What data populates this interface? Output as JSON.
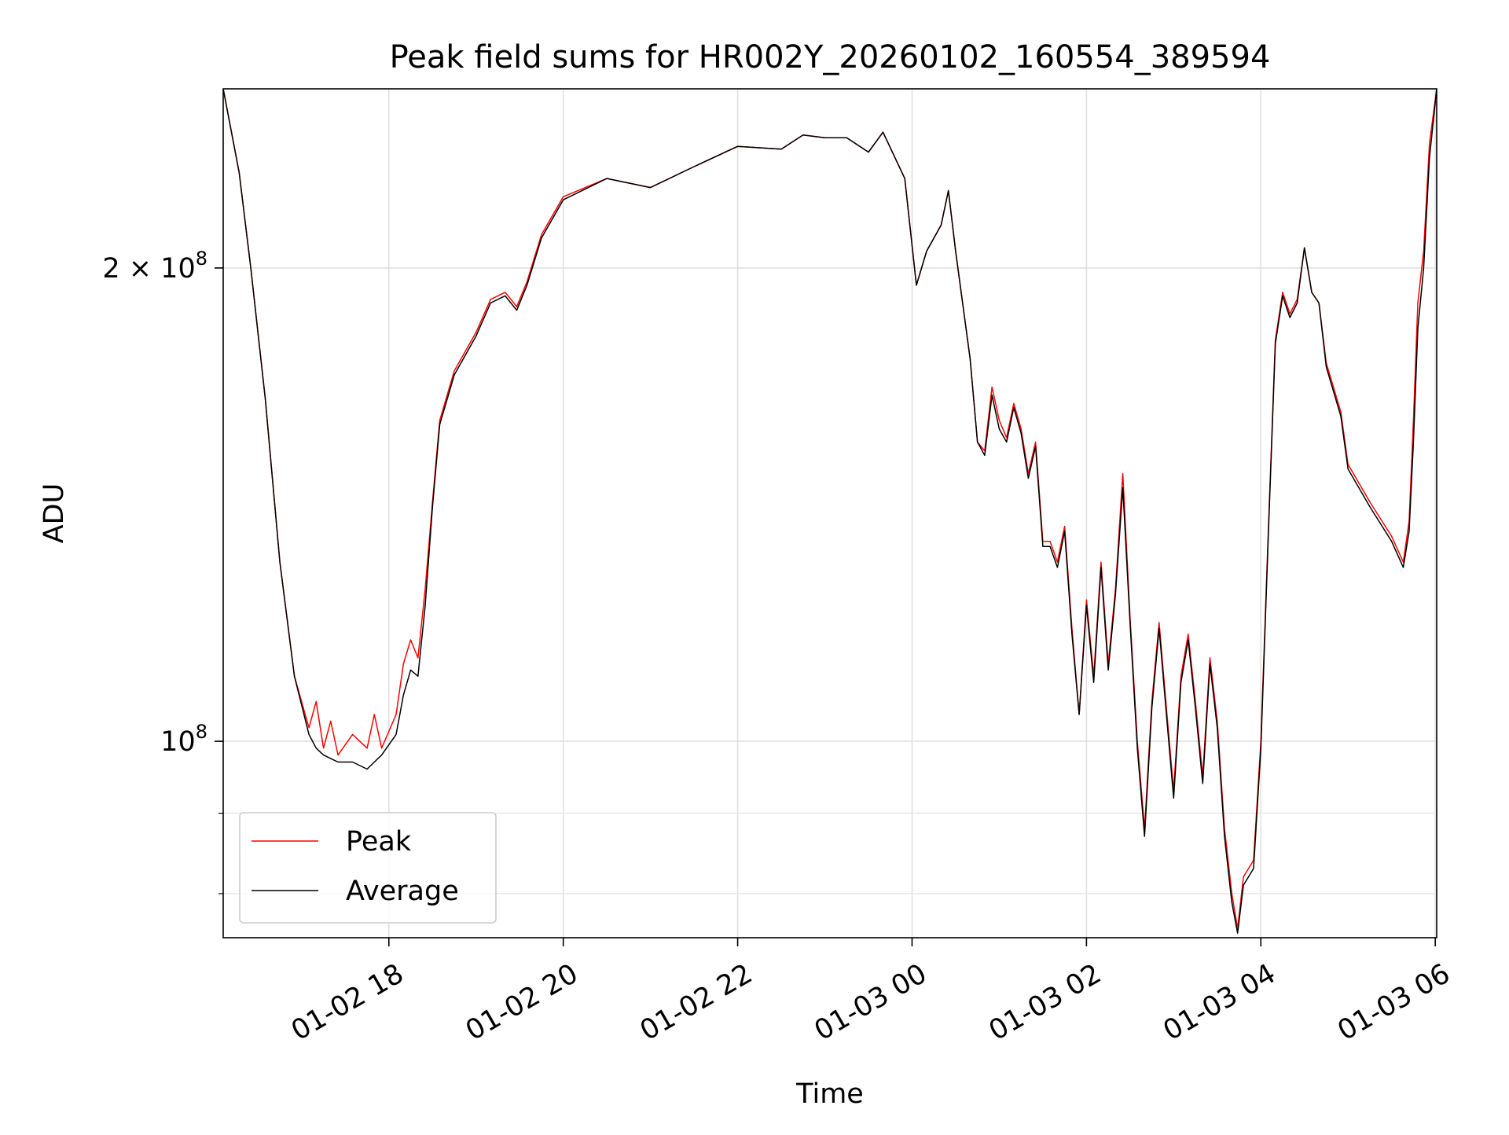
{
  "chart_data": {
    "type": "line",
    "title": "Peak field sums for HR002Y_20260102_160554_389594",
    "xlabel": "Time",
    "ylabel": "ADU",
    "xaxis": {
      "start": "2026-01-02 16:06",
      "end": "2026-01-03 06:01",
      "ticks": [
        "01-02 18",
        "01-02 20",
        "01-02 22",
        "01-03 00",
        "01-03 02",
        "01-03 04",
        "01-03 06"
      ],
      "tick_times": [
        "2026-01-02 18:00",
        "2026-01-02 20:00",
        "2026-01-02 22:00",
        "2026-01-03 00:00",
        "2026-01-03 02:00",
        "2026-01-03 04:00",
        "2026-01-03 06:00"
      ],
      "tick_rotation_deg": 30
    },
    "yaxis": {
      "scale": "log",
      "ylim": [
        75000000,
        260000000
      ],
      "major_ticks": [
        100000000,
        200000000
      ],
      "major_labels": [
        "10^8",
        "2 × 10^8"
      ]
    },
    "grid": true,
    "legend": {
      "position": "lower-left"
    },
    "series": [
      {
        "name": "Peak",
        "color": "#ff0000",
        "points": [
          [
            "2026-01-02 16:06",
            260000000
          ],
          [
            "2026-01-02 16:17",
            230000000
          ],
          [
            "2026-01-02 16:25",
            200000000
          ],
          [
            "2026-01-02 16:35",
            165000000
          ],
          [
            "2026-01-02 16:45",
            130000000
          ],
          [
            "2026-01-02 16:55",
            110000000
          ],
          [
            "2026-01-02 17:05",
            102000000
          ],
          [
            "2026-01-02 17:10",
            106000000
          ],
          [
            "2026-01-02 17:15",
            99000000
          ],
          [
            "2026-01-02 17:20",
            103000000
          ],
          [
            "2026-01-02 17:25",
            98000000
          ],
          [
            "2026-01-02 17:35",
            101000000
          ],
          [
            "2026-01-02 17:45",
            99000000
          ],
          [
            "2026-01-02 17:50",
            104000000
          ],
          [
            "2026-01-02 17:55",
            99000000
          ],
          [
            "2026-01-02 18:05",
            104000000
          ],
          [
            "2026-01-02 18:10",
            112000000
          ],
          [
            "2026-01-02 18:15",
            116000000
          ],
          [
            "2026-01-02 18:20",
            113000000
          ],
          [
            "2026-01-02 18:25",
            125000000
          ],
          [
            "2026-01-02 18:30",
            142000000
          ],
          [
            "2026-01-02 18:35",
            160000000
          ],
          [
            "2026-01-02 18:45",
            172000000
          ],
          [
            "2026-01-02 19:00",
            182000000
          ],
          [
            "2026-01-02 19:10",
            191000000
          ],
          [
            "2026-01-02 19:20",
            193000000
          ],
          [
            "2026-01-02 19:28",
            189000000
          ],
          [
            "2026-01-02 19:35",
            196000000
          ],
          [
            "2026-01-02 19:45",
            210000000
          ],
          [
            "2026-01-02 20:00",
            222000000
          ],
          [
            "2026-01-02 20:30",
            228000000
          ],
          [
            "2026-01-02 21:00",
            225000000
          ],
          [
            "2026-01-02 21:30",
            232000000
          ],
          [
            "2026-01-02 22:00",
            239000000
          ],
          [
            "2026-01-02 22:30",
            238000000
          ],
          [
            "2026-01-02 22:45",
            243000000
          ],
          [
            "2026-01-02 23:00",
            242000000
          ],
          [
            "2026-01-02 23:15",
            242000000
          ],
          [
            "2026-01-02 23:30",
            237000000
          ],
          [
            "2026-01-02 23:40",
            244000000
          ],
          [
            "2026-01-02 23:55",
            228000000
          ],
          [
            "2026-01-03 00:03",
            195000000
          ],
          [
            "2026-01-03 00:10",
            205000000
          ],
          [
            "2026-01-03 00:20",
            213000000
          ],
          [
            "2026-01-03 00:25",
            224000000
          ],
          [
            "2026-01-03 00:30",
            205000000
          ],
          [
            "2026-01-03 00:40",
            175000000
          ],
          [
            "2026-01-03 00:45",
            155000000
          ],
          [
            "2026-01-03 00:50",
            153000000
          ],
          [
            "2026-01-03 00:55",
            168000000
          ],
          [
            "2026-01-03 01:00",
            160000000
          ],
          [
            "2026-01-03 01:05",
            156000000
          ],
          [
            "2026-01-03 01:10",
            164000000
          ],
          [
            "2026-01-03 01:15",
            158000000
          ],
          [
            "2026-01-03 01:20",
            148000000
          ],
          [
            "2026-01-03 01:25",
            155000000
          ],
          [
            "2026-01-03 01:30",
            134000000
          ],
          [
            "2026-01-03 01:35",
            134000000
          ],
          [
            "2026-01-03 01:40",
            130000000
          ],
          [
            "2026-01-03 01:45",
            137000000
          ],
          [
            "2026-01-03 01:50",
            118000000
          ],
          [
            "2026-01-03 01:55",
            104000000
          ],
          [
            "2026-01-03 02:00",
            123000000
          ],
          [
            "2026-01-03 02:05",
            110000000
          ],
          [
            "2026-01-03 02:10",
            130000000
          ],
          [
            "2026-01-03 02:15",
            112000000
          ],
          [
            "2026-01-03 02:20",
            125000000
          ],
          [
            "2026-01-03 02:25",
            148000000
          ],
          [
            "2026-01-03 02:30",
            120000000
          ],
          [
            "2026-01-03 02:35",
            100000000
          ],
          [
            "2026-01-03 02:40",
            88000000
          ],
          [
            "2026-01-03 02:45",
            106000000
          ],
          [
            "2026-01-03 02:50",
            119000000
          ],
          [
            "2026-01-03 02:55",
            105000000
          ],
          [
            "2026-01-03 03:00",
            93000000
          ],
          [
            "2026-01-03 03:05",
            110000000
          ],
          [
            "2026-01-03 03:10",
            117000000
          ],
          [
            "2026-01-03 03:15",
            106000000
          ],
          [
            "2026-01-03 03:20",
            95000000
          ],
          [
            "2026-01-03 03:25",
            113000000
          ],
          [
            "2026-01-03 03:30",
            103000000
          ],
          [
            "2026-01-03 03:35",
            88000000
          ],
          [
            "2026-01-03 03:40",
            80000000
          ],
          [
            "2026-01-03 03:44",
            76000000
          ],
          [
            "2026-01-03 03:48",
            82000000
          ],
          [
            "2026-01-03 03:55",
            84000000
          ],
          [
            "2026-01-03 04:00",
            100000000
          ],
          [
            "2026-01-03 04:05",
            135000000
          ],
          [
            "2026-01-03 04:10",
            180000000
          ],
          [
            "2026-01-03 04:15",
            193000000
          ],
          [
            "2026-01-03 04:20",
            187000000
          ],
          [
            "2026-01-03 04:25",
            191000000
          ],
          [
            "2026-01-03 04:30",
            206000000
          ],
          [
            "2026-01-03 04:35",
            193000000
          ],
          [
            "2026-01-03 04:40",
            190000000
          ],
          [
            "2026-01-03 04:45",
            174000000
          ],
          [
            "2026-01-03 04:55",
            162000000
          ],
          [
            "2026-01-03 05:00",
            150000000
          ],
          [
            "2026-01-03 05:15",
            142000000
          ],
          [
            "2026-01-03 05:30",
            135000000
          ],
          [
            "2026-01-03 05:38",
            130000000
          ],
          [
            "2026-01-03 05:42",
            138000000
          ],
          [
            "2026-01-03 05:45",
            160000000
          ],
          [
            "2026-01-03 05:48",
            190000000
          ],
          [
            "2026-01-03 05:52",
            205000000
          ],
          [
            "2026-01-03 05:56",
            240000000
          ],
          [
            "2026-01-03 06:01",
            260000000
          ]
        ]
      },
      {
        "name": "Average",
        "color": "#000000",
        "points": [
          [
            "2026-01-02 16:06",
            260000000
          ],
          [
            "2026-01-02 16:17",
            230000000
          ],
          [
            "2026-01-02 16:25",
            200000000
          ],
          [
            "2026-01-02 16:35",
            165000000
          ],
          [
            "2026-01-02 16:45",
            130000000
          ],
          [
            "2026-01-02 16:55",
            110000000
          ],
          [
            "2026-01-02 17:05",
            101000000
          ],
          [
            "2026-01-02 17:10",
            99000000
          ],
          [
            "2026-01-02 17:15",
            98000000
          ],
          [
            "2026-01-02 17:20",
            97500000
          ],
          [
            "2026-01-02 17:25",
            97000000
          ],
          [
            "2026-01-02 17:35",
            97000000
          ],
          [
            "2026-01-02 17:45",
            96000000
          ],
          [
            "2026-01-02 17:50",
            97000000
          ],
          [
            "2026-01-02 17:55",
            98000000
          ],
          [
            "2026-01-02 18:05",
            101000000
          ],
          [
            "2026-01-02 18:10",
            107000000
          ],
          [
            "2026-01-02 18:15",
            111000000
          ],
          [
            "2026-01-02 18:20",
            110000000
          ],
          [
            "2026-01-02 18:25",
            122000000
          ],
          [
            "2026-01-02 18:30",
            141000000
          ],
          [
            "2026-01-02 18:35",
            159000000
          ],
          [
            "2026-01-02 18:45",
            171000000
          ],
          [
            "2026-01-02 19:00",
            181000000
          ],
          [
            "2026-01-02 19:10",
            190000000
          ],
          [
            "2026-01-02 19:20",
            192000000
          ],
          [
            "2026-01-02 19:28",
            188000000
          ],
          [
            "2026-01-02 19:35",
            195000000
          ],
          [
            "2026-01-02 19:45",
            209000000
          ],
          [
            "2026-01-02 20:00",
            221000000
          ],
          [
            "2026-01-02 20:30",
            228000000
          ],
          [
            "2026-01-02 21:00",
            225000000
          ],
          [
            "2026-01-02 21:30",
            232000000
          ],
          [
            "2026-01-02 22:00",
            239000000
          ],
          [
            "2026-01-02 22:30",
            238000000
          ],
          [
            "2026-01-02 22:45",
            243000000
          ],
          [
            "2026-01-02 23:00",
            242000000
          ],
          [
            "2026-01-02 23:15",
            242000000
          ],
          [
            "2026-01-02 23:30",
            237000000
          ],
          [
            "2026-01-02 23:40",
            244000000
          ],
          [
            "2026-01-02 23:55",
            228000000
          ],
          [
            "2026-01-03 00:03",
            195000000
          ],
          [
            "2026-01-03 00:10",
            205000000
          ],
          [
            "2026-01-03 00:20",
            213000000
          ],
          [
            "2026-01-03 00:25",
            224000000
          ],
          [
            "2026-01-03 00:30",
            205000000
          ],
          [
            "2026-01-03 00:40",
            175000000
          ],
          [
            "2026-01-03 00:45",
            155000000
          ],
          [
            "2026-01-03 00:50",
            152000000
          ],
          [
            "2026-01-03 00:55",
            166000000
          ],
          [
            "2026-01-03 01:00",
            158000000
          ],
          [
            "2026-01-03 01:05",
            155000000
          ],
          [
            "2026-01-03 01:10",
            163000000
          ],
          [
            "2026-01-03 01:15",
            157000000
          ],
          [
            "2026-01-03 01:20",
            147000000
          ],
          [
            "2026-01-03 01:25",
            154000000
          ],
          [
            "2026-01-03 01:30",
            133000000
          ],
          [
            "2026-01-03 01:35",
            133000000
          ],
          [
            "2026-01-03 01:40",
            129000000
          ],
          [
            "2026-01-03 01:45",
            136000000
          ],
          [
            "2026-01-03 01:50",
            117000000
          ],
          [
            "2026-01-03 01:55",
            104000000
          ],
          [
            "2026-01-03 02:00",
            122000000
          ],
          [
            "2026-01-03 02:05",
            109000000
          ],
          [
            "2026-01-03 02:10",
            129000000
          ],
          [
            "2026-01-03 02:15",
            111000000
          ],
          [
            "2026-01-03 02:20",
            124000000
          ],
          [
            "2026-01-03 02:25",
            145000000
          ],
          [
            "2026-01-03 02:30",
            119000000
          ],
          [
            "2026-01-03 02:35",
            99000000
          ],
          [
            "2026-01-03 02:40",
            87000000
          ],
          [
            "2026-01-03 02:45",
            105000000
          ],
          [
            "2026-01-03 02:50",
            118000000
          ],
          [
            "2026-01-03 02:55",
            104000000
          ],
          [
            "2026-01-03 03:00",
            92000000
          ],
          [
            "2026-01-03 03:05",
            109000000
          ],
          [
            "2026-01-03 03:10",
            116000000
          ],
          [
            "2026-01-03 03:15",
            105000000
          ],
          [
            "2026-01-03 03:20",
            94000000
          ],
          [
            "2026-01-03 03:25",
            112000000
          ],
          [
            "2026-01-03 03:30",
            102000000
          ],
          [
            "2026-01-03 03:35",
            87000000
          ],
          [
            "2026-01-03 03:40",
            79000000
          ],
          [
            "2026-01-03 03:44",
            75500000
          ],
          [
            "2026-01-03 03:48",
            81000000
          ],
          [
            "2026-01-03 03:55",
            83000000
          ],
          [
            "2026-01-03 04:00",
            99000000
          ],
          [
            "2026-01-03 04:05",
            134000000
          ],
          [
            "2026-01-03 04:10",
            179000000
          ],
          [
            "2026-01-03 04:15",
            192000000
          ],
          [
            "2026-01-03 04:20",
            186000000
          ],
          [
            "2026-01-03 04:25",
            190000000
          ],
          [
            "2026-01-03 04:30",
            206000000
          ],
          [
            "2026-01-03 04:35",
            193000000
          ],
          [
            "2026-01-03 04:40",
            190000000
          ],
          [
            "2026-01-03 04:45",
            173000000
          ],
          [
            "2026-01-03 04:55",
            161000000
          ],
          [
            "2026-01-03 05:00",
            149000000
          ],
          [
            "2026-01-03 05:15",
            141000000
          ],
          [
            "2026-01-03 05:30",
            134000000
          ],
          [
            "2026-01-03 05:38",
            129000000
          ],
          [
            "2026-01-03 05:42",
            136000000
          ],
          [
            "2026-01-03 05:45",
            155000000
          ],
          [
            "2026-01-03 05:48",
            183000000
          ],
          [
            "2026-01-03 05:52",
            200000000
          ],
          [
            "2026-01-03 05:56",
            235000000
          ],
          [
            "2026-01-03 06:01",
            260000000
          ]
        ]
      }
    ]
  }
}
